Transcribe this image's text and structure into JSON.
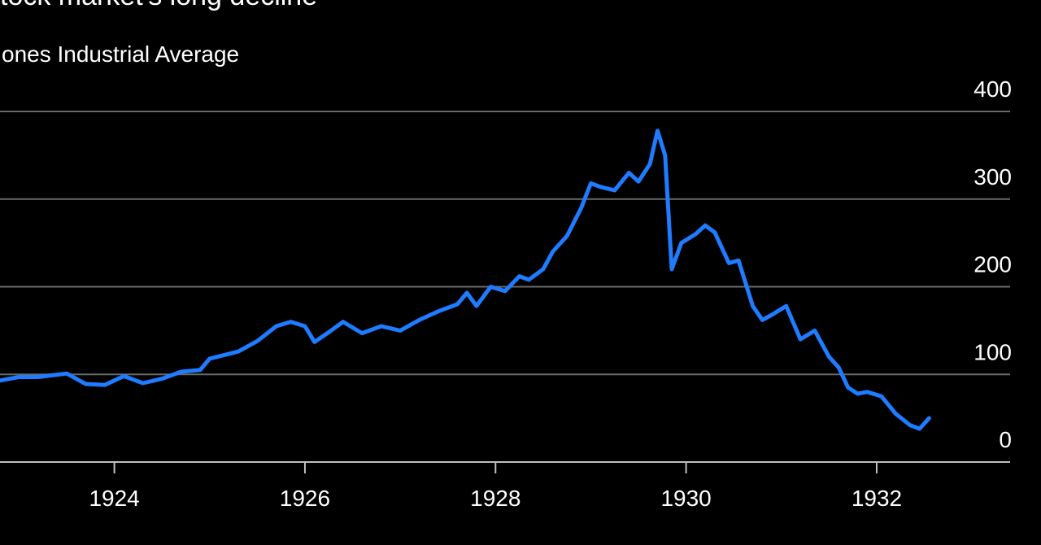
{
  "chart_data": {
    "type": "line",
    "title": "tock market's long decline",
    "subtitle": "Jones Industrial Average",
    "xlim": [
      1922.8,
      1933.4
    ],
    "ylim": [
      0,
      400
    ],
    "y_ticks": [
      0,
      100,
      200,
      300,
      400
    ],
    "x_ticks": [
      1924,
      1926,
      1928,
      1930,
      1932
    ],
    "grid": true,
    "series_color": "#1f7bff",
    "series": [
      {
        "x": [
          1922.8,
          1923.0,
          1923.2,
          1923.5,
          1923.7,
          1923.9,
          1924.0,
          1924.1,
          1924.3,
          1924.5,
          1924.7,
          1924.9,
          1925.0,
          1925.3,
          1925.5,
          1925.7,
          1925.85,
          1926.0,
          1926.1,
          1926.25,
          1926.4,
          1926.6,
          1926.8,
          1927.0,
          1927.2,
          1927.4,
          1927.6,
          1927.7,
          1927.8,
          1927.95,
          1928.1,
          1928.25,
          1928.35,
          1928.5,
          1928.6,
          1928.75,
          1928.9,
          1929.0,
          1929.1,
          1929.25,
          1929.4,
          1929.5,
          1929.62,
          1929.7,
          1929.78,
          1929.85,
          1929.95,
          1930.1,
          1930.2,
          1930.3,
          1930.45,
          1930.55,
          1930.7,
          1930.8,
          1930.9,
          1931.05,
          1931.2,
          1931.35,
          1931.5,
          1931.6,
          1931.7,
          1931.8,
          1931.9,
          1932.05,
          1932.2,
          1932.35,
          1932.45,
          1932.55
        ],
        "values": [
          93,
          97,
          97,
          101,
          89,
          88,
          93,
          98,
          90,
          95,
          103,
          105,
          118,
          126,
          138,
          155,
          160,
          155,
          137,
          148,
          160,
          147,
          155,
          150,
          162,
          172,
          180,
          193,
          178,
          200,
          195,
          212,
          208,
          220,
          240,
          258,
          290,
          318,
          314,
          310,
          330,
          320,
          340,
          378,
          350,
          220,
          250,
          260,
          270,
          262,
          227,
          230,
          178,
          162,
          168,
          178,
          140,
          150,
          120,
          108,
          85,
          78,
          80,
          75,
          55,
          42,
          38,
          50
        ]
      }
    ]
  }
}
